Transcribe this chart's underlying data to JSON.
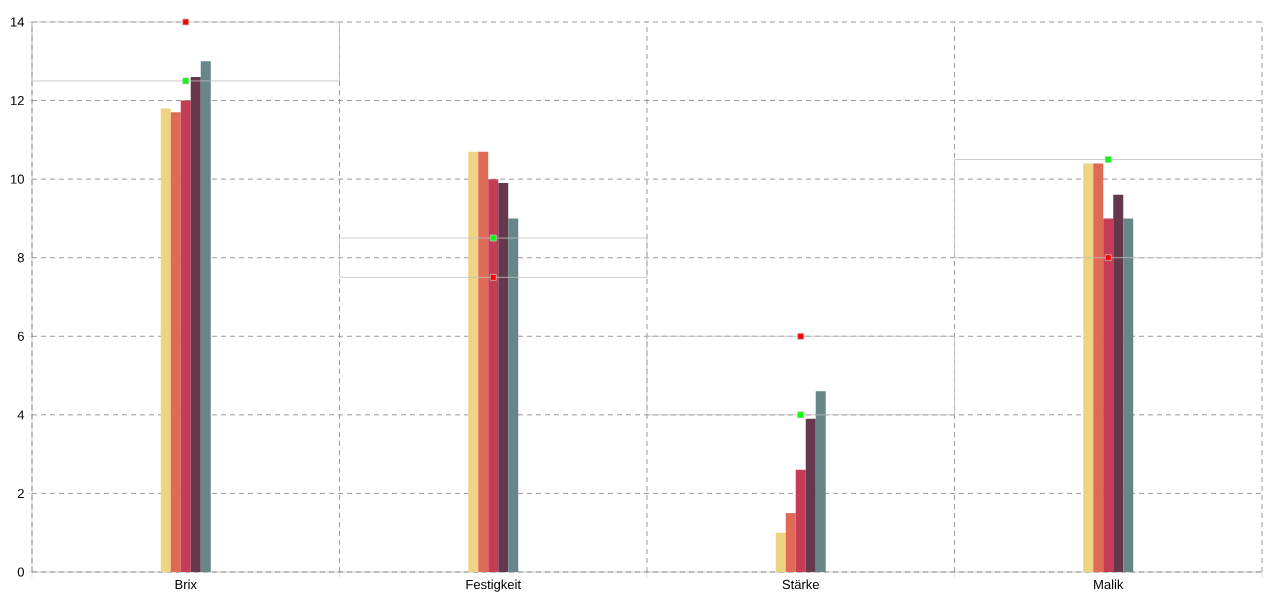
{
  "chart_data": {
    "type": "bar",
    "categories": [
      "Brix",
      "Festigkeit",
      "Stärke",
      "Malik"
    ],
    "series": [
      {
        "color": "#edd382",
        "values": [
          11.8,
          10.7,
          1.0,
          10.4
        ]
      },
      {
        "color": "#df6a55",
        "values": [
          11.7,
          10.7,
          1.5,
          10.4
        ]
      },
      {
        "color": "#c53c56",
        "values": [
          12.0,
          10.0,
          2.6,
          9.0
        ]
      },
      {
        "color": "#66384e",
        "values": [
          12.6,
          9.9,
          3.9,
          9.6
        ]
      },
      {
        "color": "#668687",
        "values": [
          13.0,
          9.0,
          4.6,
          9.0
        ]
      },
      {
        "type": "scatter",
        "marker": "square",
        "color": "#00ff00",
        "values": [
          12.5,
          8.5,
          4.0,
          10.5
        ]
      },
      {
        "type": "scatter",
        "marker": "square",
        "color": "#ff0000",
        "values": [
          14.0,
          7.5,
          6.0,
          8.0
        ]
      }
    ],
    "ylim": [
      0,
      14
    ],
    "yticks": [
      0,
      2,
      4,
      6,
      8,
      10,
      12,
      14
    ],
    "grid": true
  }
}
